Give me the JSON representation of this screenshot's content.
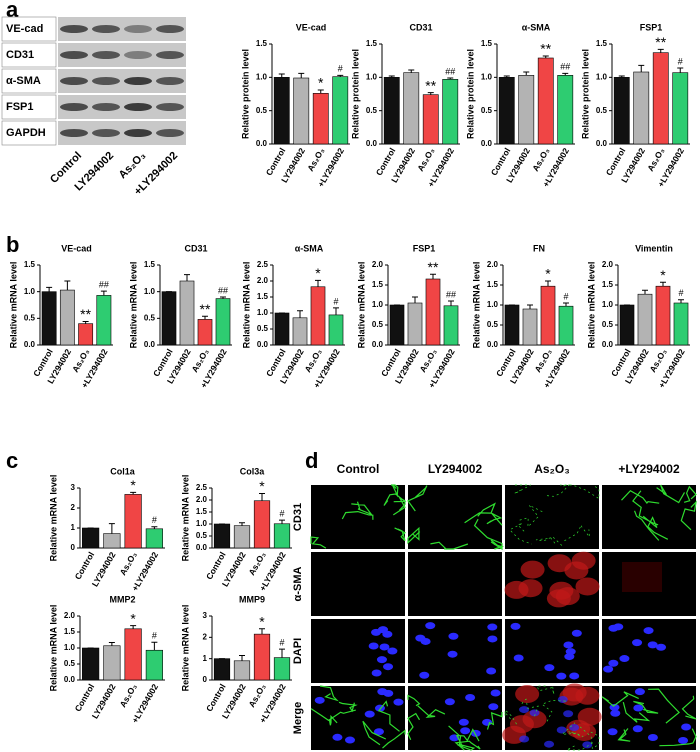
{
  "panels": [
    "a",
    "b",
    "c",
    "d"
  ],
  "blot": {
    "rows": [
      "VE-cad",
      "CD31",
      "α-SMA",
      "FSP1",
      "GAPDH"
    ],
    "lanes": [
      "Control",
      "LY294002",
      "As₂O₃",
      "+LY294002"
    ]
  },
  "chart_data": [
    {
      "type": "bar",
      "title": "VE-cad",
      "ylabel": "Relative  protein level",
      "categories": [
        "Control",
        "LY294002",
        "As₂O₃",
        "+LY294002"
      ],
      "values": [
        1.0,
        0.99,
        0.76,
        1.01
      ],
      "errors": [
        0.05,
        0.07,
        0.05,
        0.02
      ],
      "colors": [
        "#111111",
        "#b3b3b3",
        "#f04545",
        "#2ecc71"
      ],
      "ylim": [
        0,
        1.5
      ],
      "yticks": [
        {
          "value": 0,
          "label": "0.0"
        },
        0.5,
        {
          "value": 1,
          "label": "1.0"
        },
        1.5
      ],
      "annotations": [
        {
          "index": 2,
          "text": "*"
        },
        {
          "index": 3,
          "text": "#"
        }
      ]
    },
    {
      "type": "bar",
      "title": "CD31",
      "ylabel": "Relative  protein level",
      "categories": [
        "Control",
        "LY294002",
        "As₂O₃",
        "+LY294002"
      ],
      "values": [
        1.0,
        1.07,
        0.74,
        0.97
      ],
      "errors": [
        0.02,
        0.04,
        0.03,
        0.02
      ],
      "colors": [
        "#111111",
        "#b3b3b3",
        "#f04545",
        "#2ecc71"
      ],
      "ylim": [
        0,
        1.5
      ],
      "yticks": [
        {
          "value": 0,
          "label": "0.0"
        },
        0.5,
        {
          "value": 1,
          "label": "1.0"
        },
        1.5
      ],
      "annotations": [
        {
          "index": 2,
          "text": "**"
        },
        {
          "index": 3,
          "text": "##"
        }
      ]
    },
    {
      "type": "bar",
      "title": "α-SMA",
      "ylabel": "Relative  protein level",
      "categories": [
        "Control",
        "LY294002",
        "As₂O₃",
        "+LY294002"
      ],
      "values": [
        1.0,
        1.03,
        1.29,
        1.03
      ],
      "errors": [
        0.02,
        0.05,
        0.03,
        0.03
      ],
      "colors": [
        "#111111",
        "#b3b3b3",
        "#f04545",
        "#2ecc71"
      ],
      "ylim": [
        0,
        1.5
      ],
      "yticks": [
        {
          "value": 0,
          "label": "0.0"
        },
        0.5,
        {
          "value": 1,
          "label": "1.0"
        },
        1.5
      ],
      "annotations": [
        {
          "index": 2,
          "text": "**"
        },
        {
          "index": 3,
          "text": "##"
        }
      ]
    },
    {
      "type": "bar",
      "title": "FSP1",
      "ylabel": "Relative  protein level",
      "categories": [
        "Control",
        "LY294002",
        "As₂O₃",
        "+LY294002"
      ],
      "values": [
        1.0,
        1.08,
        1.37,
        1.07
      ],
      "errors": [
        0.02,
        0.1,
        0.05,
        0.07
      ],
      "colors": [
        "#111111",
        "#b3b3b3",
        "#f04545",
        "#2ecc71"
      ],
      "ylim": [
        0,
        1.5
      ],
      "yticks": [
        {
          "value": 0,
          "label": "0.0"
        },
        0.5,
        {
          "value": 1,
          "label": "1.0"
        },
        1.5
      ],
      "annotations": [
        {
          "index": 2,
          "text": "**"
        },
        {
          "index": 3,
          "text": "#"
        }
      ]
    },
    {
      "type": "bar",
      "title": "VE-cad",
      "ylabel": "Relative mRNA level",
      "categories": [
        "Control",
        "LY294002",
        "As₂O₃",
        "+LY294002"
      ],
      "values": [
        1.0,
        1.03,
        0.4,
        0.93
      ],
      "errors": [
        0.08,
        0.17,
        0.04,
        0.08
      ],
      "colors": [
        "#111111",
        "#b3b3b3",
        "#f04545",
        "#2ecc71"
      ],
      "ylim": [
        0,
        1.5
      ],
      "yticks": [
        {
          "value": 0,
          "label": "0.0"
        },
        0.5,
        {
          "value": 1,
          "label": "1.0"
        },
        1.5
      ],
      "annotations": [
        {
          "index": 2,
          "text": "**"
        },
        {
          "index": 3,
          "text": "##"
        }
      ]
    },
    {
      "type": "bar",
      "title": "CD31",
      "ylabel": "Relative mRNA level",
      "categories": [
        "Control",
        "LY294002",
        "As₂O₃",
        "+LY294002"
      ],
      "values": [
        1.0,
        1.2,
        0.48,
        0.87
      ],
      "errors": [
        0,
        0.12,
        0.06,
        0.03
      ],
      "colors": [
        "#111111",
        "#b3b3b3",
        "#f04545",
        "#2ecc71"
      ],
      "ylim": [
        0,
        1.5
      ],
      "yticks": [
        {
          "value": 0,
          "label": "0.0"
        },
        0.5,
        {
          "value": 1,
          "label": "1.0"
        },
        1.5
      ],
      "annotations": [
        {
          "index": 2,
          "text": "**"
        },
        {
          "index": 3,
          "text": "##"
        }
      ]
    },
    {
      "type": "bar",
      "title": "α-SMA",
      "ylabel": "Relative mRNA level",
      "categories": [
        "Control",
        "LY294002",
        "As₂O₃",
        "+LY294002"
      ],
      "values": [
        1.0,
        0.85,
        1.82,
        0.94
      ],
      "errors": [
        0,
        0.22,
        0.2,
        0.22
      ],
      "colors": [
        "#111111",
        "#b3b3b3",
        "#f04545",
        "#2ecc71"
      ],
      "ylim": [
        0,
        2.5
      ],
      "yticks": [
        {
          "value": 0,
          "label": "0.0"
        },
        0.5,
        {
          "value": 1,
          "label": "1.0"
        },
        1.5,
        {
          "value": 2,
          "label": "2.0"
        },
        2.5
      ],
      "annotations": [
        {
          "index": 2,
          "text": "*"
        },
        {
          "index": 3,
          "text": "#"
        }
      ]
    },
    {
      "type": "bar",
      "title": "FSP1",
      "ylabel": "Relative mRNA level",
      "categories": [
        "Control",
        "LY294002",
        "As₂O₃",
        "+LY294002"
      ],
      "values": [
        1.0,
        1.05,
        1.65,
        0.98
      ],
      "errors": [
        0,
        0.15,
        0.12,
        0.12
      ],
      "colors": [
        "#111111",
        "#b3b3b3",
        "#f04545",
        "#2ecc71"
      ],
      "ylim": [
        0,
        2
      ],
      "yticks": [
        {
          "value": 0,
          "label": "0.0"
        },
        0.5,
        {
          "value": 1,
          "label": "1.0"
        },
        1.5,
        {
          "value": 2,
          "label": "2.0"
        }
      ],
      "annotations": [
        {
          "index": 2,
          "text": "**"
        },
        {
          "index": 3,
          "text": "##"
        }
      ]
    },
    {
      "type": "bar",
      "title": "FN",
      "ylabel": "Relative mRNA level",
      "categories": [
        "Control",
        "LY294002",
        "As₂O₃",
        "+LY294002"
      ],
      "values": [
        1.0,
        0.9,
        1.47,
        0.97
      ],
      "errors": [
        0,
        0.1,
        0.13,
        0.08
      ],
      "colors": [
        "#111111",
        "#b3b3b3",
        "#f04545",
        "#2ecc71"
      ],
      "ylim": [
        0,
        2
      ],
      "yticks": [
        {
          "value": 0,
          "label": "0.0"
        },
        0.5,
        {
          "value": 1,
          "label": "1.0"
        },
        1.5,
        {
          "value": 2,
          "label": "2.0"
        }
      ],
      "annotations": [
        {
          "index": 2,
          "text": "*"
        },
        {
          "index": 3,
          "text": "#"
        }
      ]
    },
    {
      "type": "bar",
      "title": "Vimentin",
      "ylabel": "Relative mRNA level",
      "categories": [
        "Control",
        "LY294002",
        "As₂O₃",
        "+LY294002"
      ],
      "values": [
        1.0,
        1.27,
        1.47,
        1.05
      ],
      "errors": [
        0,
        0.1,
        0.1,
        0.08
      ],
      "colors": [
        "#111111",
        "#b3b3b3",
        "#f04545",
        "#2ecc71"
      ],
      "ylim": [
        0,
        2
      ],
      "yticks": [
        {
          "value": 0,
          "label": "0.0"
        },
        0.5,
        {
          "value": 1,
          "label": "1.0"
        },
        1.5,
        {
          "value": 2,
          "label": "2.0"
        }
      ],
      "annotations": [
        {
          "index": 2,
          "text": "*"
        },
        {
          "index": 3,
          "text": "#"
        }
      ]
    },
    {
      "type": "bar",
      "title": "Col1a",
      "ylabel": "Relative mRNA level",
      "categories": [
        "Control",
        "LY294002",
        "As₂O₃",
        "+LY294002"
      ],
      "values": [
        1.0,
        0.72,
        2.68,
        0.96
      ],
      "errors": [
        0,
        0.5,
        0.1,
        0.1
      ],
      "colors": [
        "#111111",
        "#b3b3b3",
        "#f04545",
        "#2ecc71"
      ],
      "ylim": [
        0,
        3
      ],
      "yticks": [
        0,
        1,
        2,
        3
      ],
      "annotations": [
        {
          "index": 2,
          "text": "*"
        },
        {
          "index": 3,
          "text": "#"
        }
      ]
    },
    {
      "type": "bar",
      "title": "Col3a",
      "ylabel": "Relative mRNA level",
      "categories": [
        "Control",
        "LY294002",
        "As₂O₃",
        "+LY294002"
      ],
      "values": [
        1.0,
        0.93,
        1.97,
        1.01
      ],
      "errors": [
        0,
        0.12,
        0.3,
        0.15
      ],
      "colors": [
        "#111111",
        "#b3b3b3",
        "#f04545",
        "#2ecc71"
      ],
      "ylim": [
        0,
        2.5
      ],
      "yticks": [
        {
          "value": 0,
          "label": "0.0"
        },
        0.5,
        {
          "value": 1,
          "label": "1.0"
        },
        1.5,
        {
          "value": 2,
          "label": "2.0"
        },
        2.5
      ],
      "annotations": [
        {
          "index": 2,
          "text": "*"
        },
        {
          "index": 3,
          "text": "#"
        }
      ]
    },
    {
      "type": "bar",
      "title": "MMP2",
      "ylabel": "Relative mRNA level",
      "categories": [
        "Control",
        "LY294002",
        "As₂O₃",
        "+LY294002"
      ],
      "values": [
        1.0,
        1.07,
        1.6,
        0.93
      ],
      "errors": [
        0,
        0.1,
        0.1,
        0.25
      ],
      "colors": [
        "#111111",
        "#b3b3b3",
        "#f04545",
        "#2ecc71"
      ],
      "ylim": [
        0,
        2
      ],
      "yticks": [
        {
          "value": 0,
          "label": "0.0"
        },
        0.5,
        {
          "value": 1,
          "label": "1.0"
        },
        1.5,
        {
          "value": 2,
          "label": "2.0"
        }
      ],
      "annotations": [
        {
          "index": 2,
          "text": "*"
        },
        {
          "index": 3,
          "text": "#"
        }
      ]
    },
    {
      "type": "bar",
      "title": "MMP9",
      "ylabel": "Relative mRNA level",
      "categories": [
        "Control",
        "LY294002",
        "As₂O₃",
        "+LY294002"
      ],
      "values": [
        1.0,
        0.9,
        2.15,
        1.05
      ],
      "errors": [
        0,
        0.25,
        0.25,
        0.4
      ],
      "colors": [
        "#111111",
        "#b3b3b3",
        "#f04545",
        "#2ecc71"
      ],
      "ylim": [
        0,
        3
      ],
      "yticks": [
        0,
        1,
        2,
        3
      ],
      "annotations": [
        {
          "index": 2,
          "text": "*"
        },
        {
          "index": 3,
          "text": "#"
        }
      ]
    }
  ],
  "micrograph": {
    "columns": [
      "Control",
      "LY294002",
      "As₂O₃",
      "+LY294002"
    ],
    "rows": [
      {
        "label": "CD31",
        "color": "#1fbf1f"
      },
      {
        "label": "α-SMA",
        "color": "#e02020"
      },
      {
        "label": "DAPI",
        "color": "#2020e0"
      },
      {
        "label": "Merge",
        "color": "#000000"
      }
    ]
  }
}
